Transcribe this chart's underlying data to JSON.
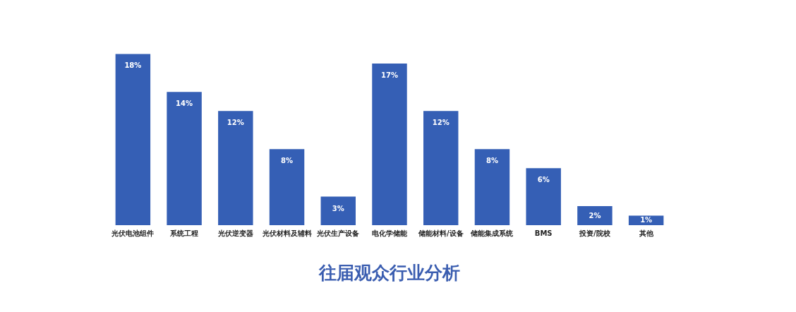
{
  "chart_data": {
    "type": "bar",
    "relative": false,
    "title": "往届观众行业分析",
    "categories": [
      "光伏电池组件",
      "系统工程",
      "光伏逆变器",
      "光伏材料及辅料",
      "光伏生产设备",
      "电化学储能",
      "储能材料/设备",
      "储能集成系统",
      "BMS",
      "投资/院校",
      "其他"
    ],
    "values": [
      18,
      14,
      12,
      8,
      3,
      17,
      12,
      8,
      6,
      2,
      1
    ],
    "value_labels": [
      "18%",
      "14%",
      "12%",
      "8%",
      "3%",
      "17%",
      "12%",
      "8%",
      "6%",
      "2%",
      "1%"
    ],
    "color": "#355fb5",
    "grid": false
  }
}
